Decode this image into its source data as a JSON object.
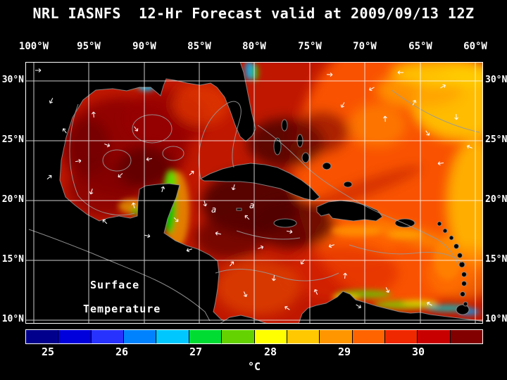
{
  "title": "NRL IASNFS  12-Hr Forecast valid at 2009/09/13 12Z",
  "axes": {
    "top": [
      "100°W",
      "95°W",
      "90°W",
      "85°W",
      "80°W",
      "75°W",
      "70°W",
      "65°W",
      "60°W"
    ],
    "left": [
      "30°N",
      "25°N",
      "20°N",
      "15°N",
      "10°N"
    ],
    "right": [
      "30°N",
      "25°N",
      "20°N",
      "15°N",
      "10°N"
    ]
  },
  "map": {
    "annotation_line1": "Surface",
    "annotation_line2": "Temperature",
    "contour_labels": [
      "a",
      "a"
    ]
  },
  "colorbar": {
    "ticks": [
      "25",
      "26",
      "27",
      "28",
      "29",
      "30"
    ],
    "unit": "°C",
    "colors": [
      "#00008c",
      "#0000dc",
      "#2832ff",
      "#0082ff",
      "#00c8ff",
      "#00dc32",
      "#64d200",
      "#ffff00",
      "#ffc800",
      "#ff9600",
      "#ff6400",
      "#f02800",
      "#c80000",
      "#820000"
    ]
  },
  "palette": {
    "background": "#000000",
    "text": "#ffffff",
    "grid": "#ffffff",
    "sea_base": "#c01800",
    "coast_outline": "#999999"
  }
}
